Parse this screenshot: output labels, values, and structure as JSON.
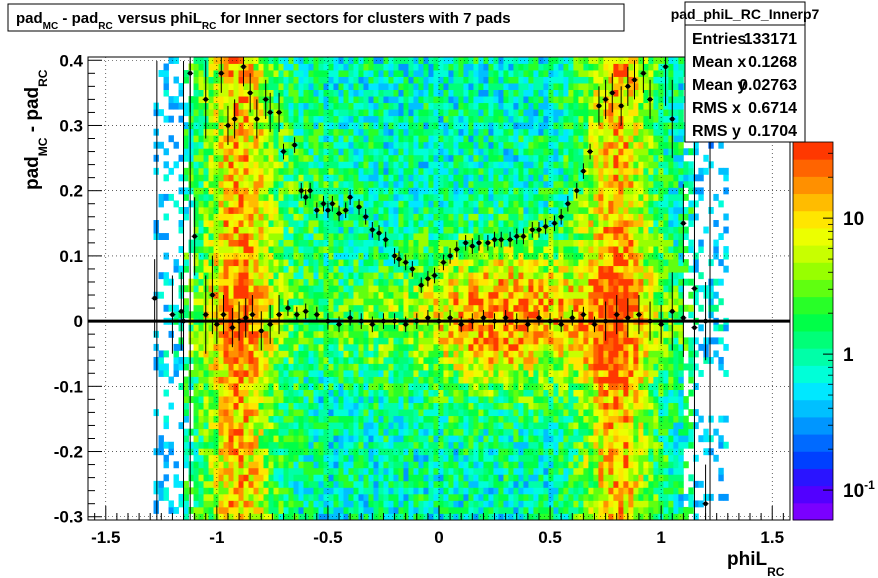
{
  "title": {
    "main": "pad",
    "sub1": "MC",
    "mid": " - pad",
    "sub2": "RC",
    "rest": "versus phiL",
    "sub3": "RC",
    "tail": " for Inner sectors for clusters with 7 pads"
  },
  "axes": {
    "x": {
      "label_main": "phiL",
      "label_sub": "RC",
      "range": [
        -1.58,
        1.58
      ],
      "ticks": [
        -1.5,
        -1,
        -0.5,
        0,
        0.5,
        1,
        1.5
      ],
      "tick_labels": [
        "-1.5",
        "-1",
        "-0.5",
        "0",
        "0.5",
        "1",
        "1.5"
      ]
    },
    "y": {
      "label_a": "pad",
      "label_a_sub": "MC",
      "label_b": " - pad",
      "label_b_sub": "RC",
      "range": [
        -0.305,
        0.405
      ],
      "ticks": [
        -0.3,
        -0.2,
        -0.1,
        0,
        0.1,
        0.2,
        0.3,
        0.4
      ],
      "tick_labels": [
        "-0.3",
        "-0.2",
        "-0.1",
        "0",
        "0.1",
        "0.2",
        "0.3",
        "0.4"
      ]
    }
  },
  "stats": {
    "name": "pad_phiL_RC_Innerp7",
    "rows": [
      {
        "label": "Entries",
        "value": "133171"
      },
      {
        "label": "Mean x",
        "value": "0.1268"
      },
      {
        "label": "Mean y",
        "value": "0.02763"
      },
      {
        "label": "RMS x",
        "value": "0.6714"
      },
      {
        "label": "RMS y",
        "value": "0.1704"
      }
    ]
  },
  "palette": {
    "ticks": [
      {
        "label": "10",
        "log": 1
      },
      {
        "label": "1",
        "log": 0
      },
      {
        "label": "10",
        "sup": "-1",
        "log": -1
      }
    ],
    "log_range": [
      -1.22,
      1.56
    ],
    "colors": [
      "#7a00ff",
      "#5200ff",
      "#2a14ff",
      "#0040ff",
      "#006aff",
      "#0096ff",
      "#00c0ff",
      "#00e8ff",
      "#00ffd8",
      "#00ffa8",
      "#00ff78",
      "#00ff48",
      "#28ff28",
      "#60ff10",
      "#98ff00",
      "#c8ff00",
      "#ecff00",
      "#ffe600",
      "#ffbc00",
      "#ff9000",
      "#ff6400",
      "#ff3800"
    ]
  },
  "chart_data": {
    "type": "heatmap",
    "title": "pad_MC - pad_RC versus phiL_RC for Inner sectors for clusters with 7 pads",
    "xlabel": "phiL_RC",
    "ylabel": "pad_MC - pad_RC",
    "xlim": [
      -1.58,
      1.58
    ],
    "ylim": [
      -0.305,
      0.405
    ],
    "z_scale": "log",
    "color_bands": [
      {
        "x_range": [
          -1.05,
          -0.75
        ],
        "y_range": [
          -0.305,
          0.405
        ],
        "level": "high (~10-30)"
      },
      {
        "x_range": [
          0.65,
          0.95
        ],
        "y_range": [
          -0.305,
          0.405
        ],
        "level": "high (~10-30)"
      },
      {
        "x_range": [
          -0.1,
          0.6
        ],
        "y_range": [
          -0.1,
          0.12
        ],
        "level": "high (~10-30)"
      },
      {
        "x_range": [
          -1.28,
          1.28
        ],
        "y_range": [
          -0.305,
          0.405
        ],
        "level": "medium (~1-5)"
      }
    ],
    "series": [
      {
        "name": "profile (upper branch)",
        "x": [
          -1.28,
          -1.16,
          -1.12,
          -1.1,
          -1.05,
          -1.02,
          -0.98,
          -0.95,
          -0.92,
          -0.88,
          -0.85,
          -0.82,
          -0.78,
          -0.76,
          -0.72,
          -0.7,
          -0.65,
          -0.62,
          -0.6,
          -0.58,
          -0.55,
          -0.52,
          -0.5,
          -0.48,
          -0.45,
          -0.42,
          -0.4,
          -0.36,
          -0.33,
          -0.3,
          -0.27,
          -0.24,
          -0.2,
          -0.18,
          -0.15,
          -0.12,
          -0.08,
          -0.05,
          -0.02,
          0.02,
          0.05,
          0.08,
          0.12,
          0.15,
          0.18,
          0.22,
          0.25,
          0.28,
          0.32,
          0.35,
          0.38,
          0.42,
          0.45,
          0.48,
          0.52,
          0.55,
          0.58,
          0.62,
          0.65,
          0.68,
          0.72,
          0.75,
          0.78,
          0.82,
          0.85,
          0.88,
          0.92,
          0.95,
          1.02,
          1.05,
          1.1,
          1.15,
          1.2
        ],
        "y": [
          0.035,
          0.015,
          0.38,
          0.13,
          0.34,
          0.04,
          0.38,
          0.3,
          0.31,
          0.39,
          0.35,
          0.31,
          0.34,
          0.32,
          0.32,
          0.26,
          0.27,
          0.2,
          0.19,
          0.2,
          0.17,
          0.18,
          0.17,
          0.18,
          0.165,
          0.17,
          0.19,
          0.175,
          0.16,
          0.14,
          0.135,
          0.125,
          0.1,
          0.095,
          0.09,
          0.08,
          0.055,
          0.065,
          0.07,
          0.09,
          0.1,
          0.11,
          0.12,
          0.115,
          0.12,
          0.12,
          0.125,
          0.125,
          0.125,
          0.13,
          0.13,
          0.14,
          0.14,
          0.145,
          0.15,
          0.16,
          0.18,
          0.2,
          0.23,
          0.26,
          0.33,
          0.34,
          0.35,
          0.33,
          0.36,
          0.37,
          0.38,
          0.34,
          0.39,
          0.31,
          0.15,
          0.05,
          -0.28
        ]
      },
      {
        "name": "profile (central)",
        "x": [
          -1.2,
          -1.15,
          -1.05,
          -1.0,
          -0.97,
          -0.93,
          -0.9,
          -0.87,
          -0.84,
          -0.8,
          -0.76,
          -0.72,
          -0.68,
          -0.64,
          -0.6,
          -0.55,
          -0.5,
          -0.45,
          -0.4,
          -0.35,
          -0.3,
          -0.25,
          -0.2,
          -0.15,
          -0.1,
          -0.05,
          0.0,
          0.05,
          0.1,
          0.15,
          0.2,
          0.25,
          0.3,
          0.35,
          0.4,
          0.45,
          0.5,
          0.55,
          0.6,
          0.65,
          0.7,
          0.75,
          0.8,
          0.85,
          0.9,
          0.95,
          1.0,
          1.05,
          1.1,
          1.15,
          1.2
        ],
        "y": [
          0.01,
          0.0,
          0.01,
          -0.005,
          0.01,
          -0.01,
          0.0,
          0.005,
          0.01,
          -0.015,
          -0.005,
          0.01,
          0.02,
          0.01,
          0.015,
          0.01,
          0.0,
          -0.005,
          0.005,
          0.0,
          -0.005,
          0.0,
          0.0,
          -0.005,
          0.0,
          0.005,
          0.0,
          0.005,
          -0.005,
          0.0,
          0.005,
          0.0,
          0.005,
          0.0,
          -0.005,
          0.005,
          0.0,
          -0.005,
          0.005,
          0.01,
          -0.005,
          0.0,
          0.01,
          0.005,
          0.01,
          0.0,
          -0.005,
          0.015,
          0.005,
          -0.01,
          0.0
        ]
      }
    ],
    "reference_line": {
      "y": 0
    }
  }
}
